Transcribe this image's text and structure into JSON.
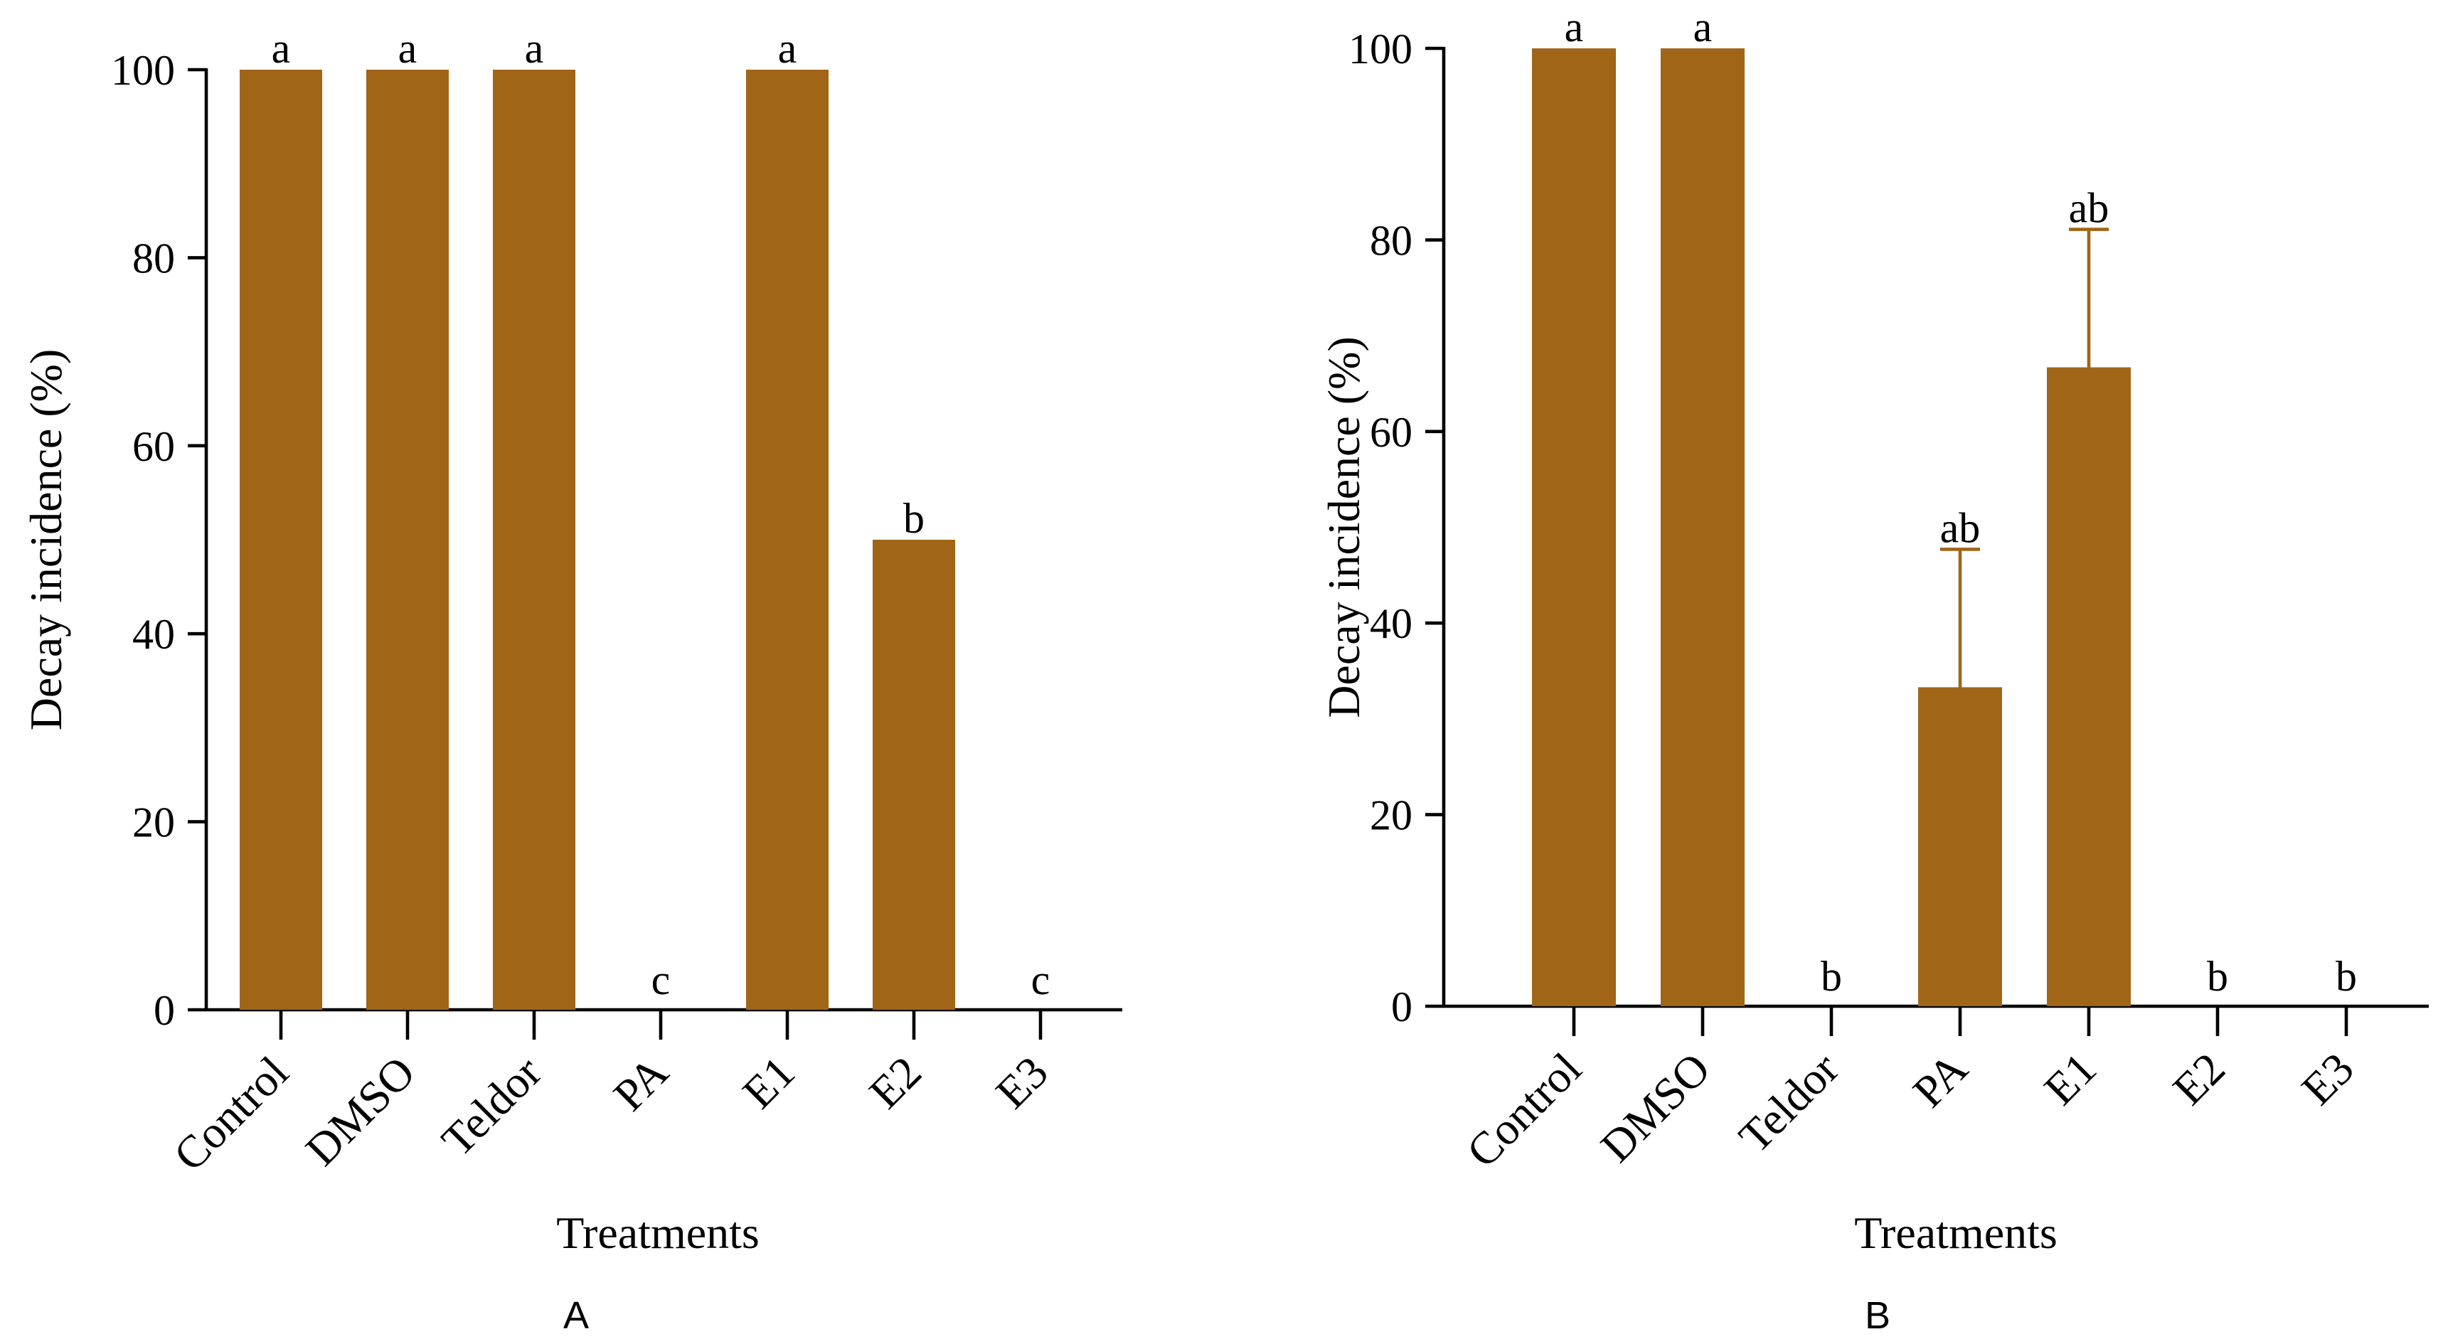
{
  "colors": {
    "bar": "#a06517",
    "axis": "#000000"
  },
  "chart_data": [
    {
      "type": "bar",
      "panel_label": "A",
      "xlabel": "Treatments",
      "ylabel": "Decay incidence (%)",
      "ylim": [
        0,
        100
      ],
      "yticks": [
        0,
        20,
        40,
        60,
        80,
        100
      ],
      "categories": [
        "Control",
        "DMSO",
        "Teldor",
        "PA",
        "E1",
        "E2",
        "E3"
      ],
      "values": [
        100,
        100,
        100,
        0,
        100,
        50,
        0
      ],
      "errors": [
        0,
        0,
        0,
        0,
        0,
        0,
        0
      ],
      "significance": [
        "a",
        "a",
        "a",
        "c",
        "a",
        "b",
        "c"
      ]
    },
    {
      "type": "bar",
      "panel_label": "B",
      "xlabel": "Treatments",
      "ylabel": "Decay incidence (%)",
      "ylim": [
        0,
        100
      ],
      "yticks": [
        0,
        20,
        40,
        60,
        80,
        100
      ],
      "categories": [
        "Control",
        "DMSO",
        "Teldor",
        "PA",
        "E1",
        "E2",
        "E3"
      ],
      "values": [
        100,
        100,
        0,
        33.3,
        66.7,
        0,
        0
      ],
      "errors": [
        0,
        0,
        0,
        14.4,
        14.4,
        0,
        0
      ],
      "significance": [
        "a",
        "a",
        "b",
        "ab",
        "ab",
        "b",
        "b"
      ]
    }
  ]
}
